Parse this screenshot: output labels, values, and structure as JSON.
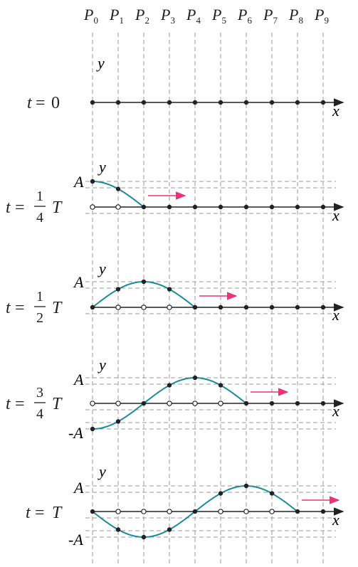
{
  "points": {
    "labels": [
      {
        "main": "P",
        "sub": "0"
      },
      {
        "main": "P",
        "sub": "1"
      },
      {
        "main": "P",
        "sub": "2"
      },
      {
        "main": "P",
        "sub": "3"
      },
      {
        "main": "P",
        "sub": "4"
      },
      {
        "main": "P",
        "sub": "5"
      },
      {
        "main": "P",
        "sub": "6"
      },
      {
        "main": "P",
        "sub": "7"
      },
      {
        "main": "P",
        "sub": "8"
      },
      {
        "main": "P",
        "sub": "9"
      }
    ]
  },
  "axis_labels": {
    "x": "x",
    "y": "y",
    "amp_pos": "A",
    "amp_neg": "-A"
  },
  "panels": [
    {
      "id": "t0",
      "time": {
        "prefix": "t",
        "eq": "=",
        "whole": "0"
      },
      "wave_end_index": 0,
      "phase_quarters": 0,
      "show_arrow": false
    },
    {
      "id": "t14",
      "time": {
        "prefix": "t",
        "eq": "=",
        "num": "1",
        "den": "4",
        "suffix": "T"
      },
      "wave_end_index": 2,
      "phase_quarters": 1,
      "show_arrow": true
    },
    {
      "id": "t12",
      "time": {
        "prefix": "t",
        "eq": "=",
        "num": "1",
        "den": "2",
        "suffix": "T"
      },
      "wave_end_index": 4,
      "phase_quarters": 2,
      "show_arrow": true
    },
    {
      "id": "t34",
      "time": {
        "prefix": "t",
        "eq": "=",
        "num": "3",
        "den": "4",
        "suffix": "T"
      },
      "wave_end_index": 6,
      "phase_quarters": 3,
      "show_arrow": true
    },
    {
      "id": "t1",
      "time": {
        "prefix": "t",
        "eq": "=",
        "whole": "T"
      },
      "wave_end_index": 8,
      "phase_quarters": 4,
      "show_arrow": true
    }
  ],
  "colors": {
    "wave": "#1a8a9a",
    "arrow": "#e8357a",
    "axis": "#222222",
    "dash": "#9a9a9a"
  }
}
